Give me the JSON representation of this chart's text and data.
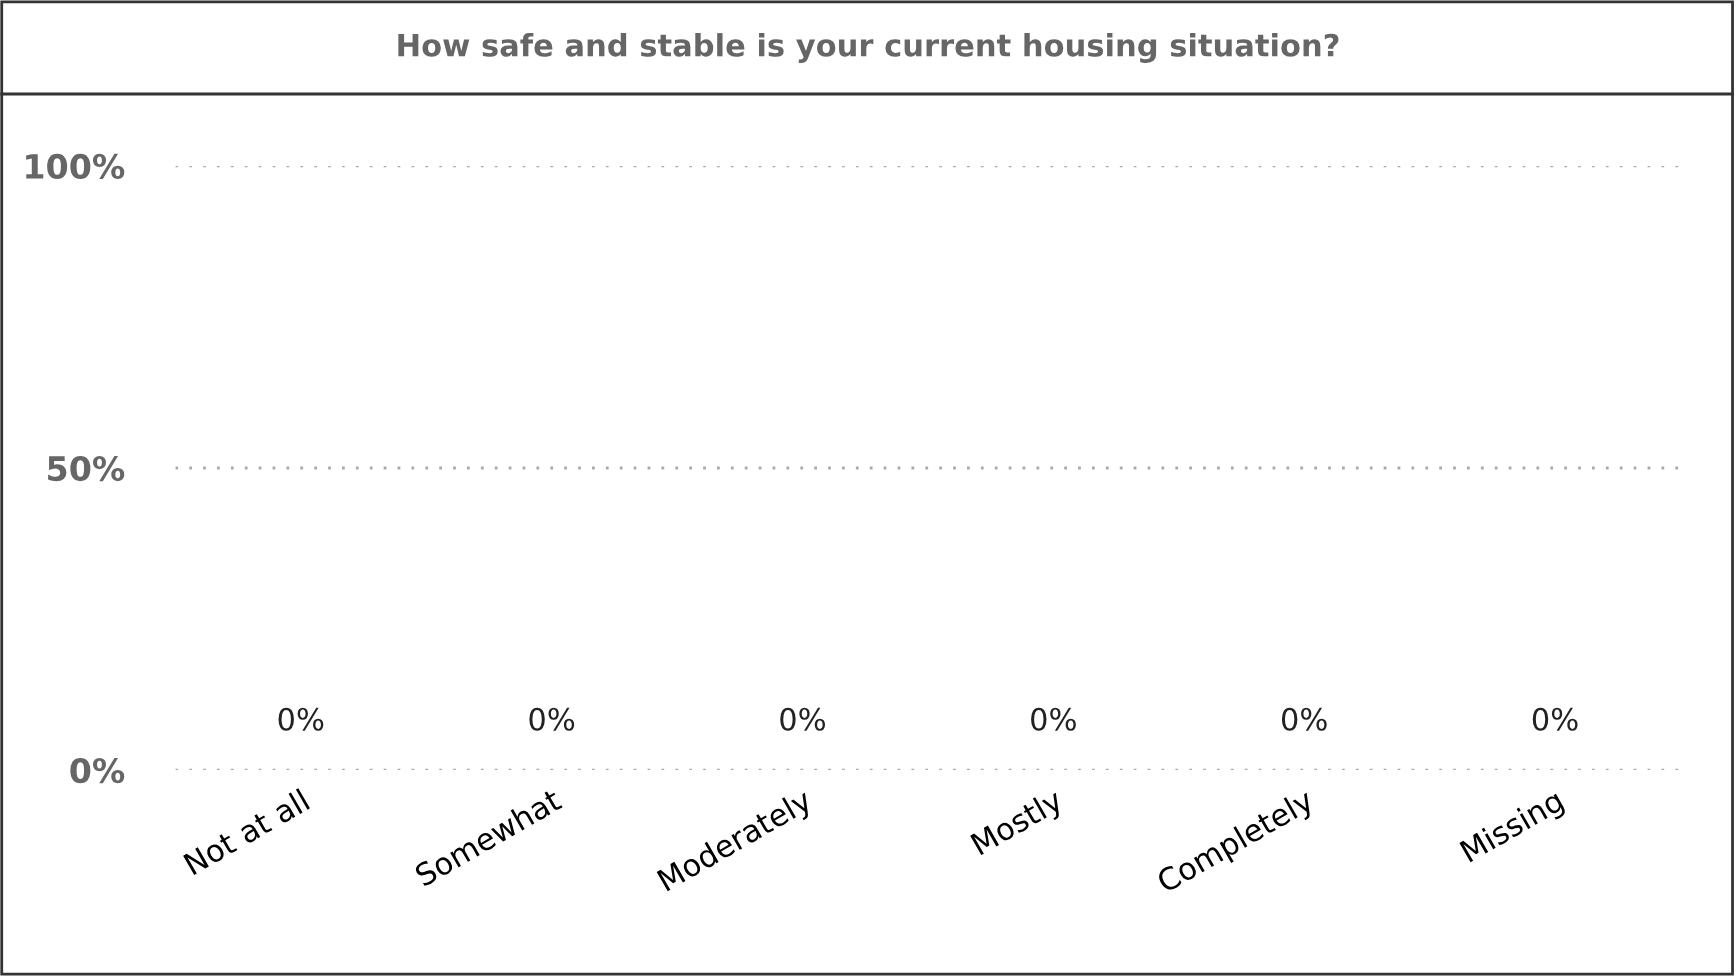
{
  "chart_data": {
    "type": "bar",
    "title": "How safe and stable is your current housing situation?",
    "categories": [
      "Not at all",
      "Somewhat",
      "Moderately",
      "Mostly",
      "Completely",
      "Missing"
    ],
    "values": [
      0,
      0,
      0,
      0,
      0,
      0
    ],
    "value_labels": [
      "0%",
      "0%",
      "0%",
      "0%",
      "0%",
      "0%"
    ],
    "ylim": [
      0,
      100
    ],
    "yticks": [
      {
        "value": 0,
        "label": "0%"
      },
      {
        "value": 50,
        "label": "50%"
      },
      {
        "value": 100,
        "label": "100%"
      }
    ],
    "grid": "y",
    "legend": false
  }
}
